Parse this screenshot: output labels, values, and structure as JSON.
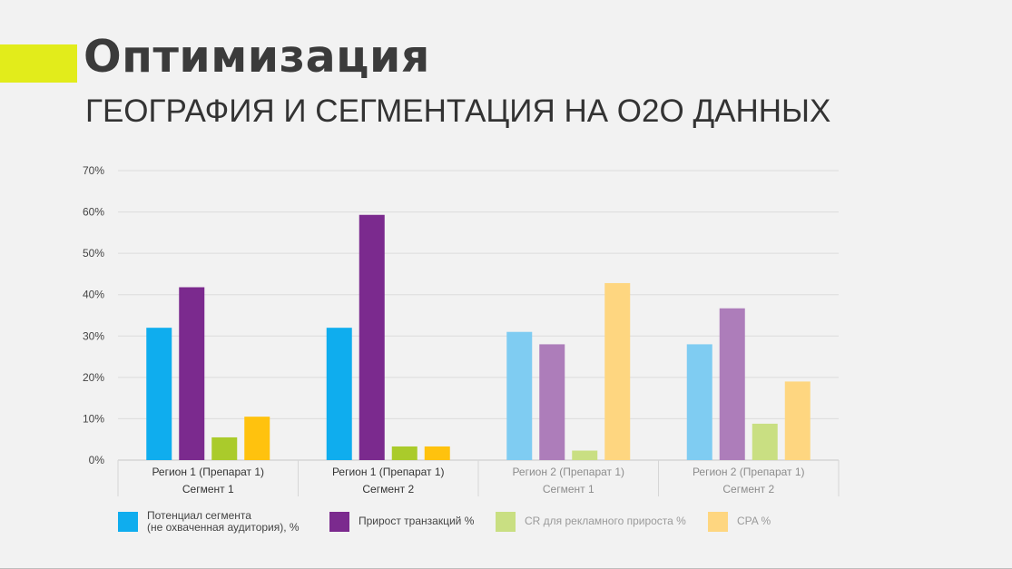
{
  "slide": {
    "title": "Оптимизация",
    "subtitle": "ГЕОГРАФИЯ И СЕГМЕНТАЦИЯ НА O2O ДАННЫХ"
  },
  "chart_data": {
    "type": "bar",
    "y_ticks": [
      "0%",
      "10%",
      "20%",
      "30%",
      "40%",
      "50%",
      "60%",
      "70%"
    ],
    "ylim": [
      0,
      70
    ],
    "y_unit": "%",
    "grid": true,
    "legend_position": "bottom",
    "categories": [
      {
        "line1": "Регион 1 (Препарат 1)",
        "line2": "Сегмент 1",
        "faded": false
      },
      {
        "line1": "Регион 1 (Препарат 1)",
        "line2": "Сегмент 2",
        "faded": false
      },
      {
        "line1": "Регион 2 (Препарат 1)",
        "line2": "Сегмент 1",
        "faded": true
      },
      {
        "line1": "Регион 2 (Препарат 1)",
        "line2": "Сегмент 2",
        "faded": true
      }
    ],
    "series": [
      {
        "name": "Потенциал сегмента\n(не охваченная аудитория), %",
        "values": [
          32,
          32,
          31,
          28
        ],
        "color": "#0fadee",
        "faded_color": "#7fccf2"
      },
      {
        "name": "Прирост транзакций %",
        "values": [
          41.8,
          59.3,
          28,
          36.7
        ],
        "color": "#7b2a8e",
        "faded_color": "#ad7dba"
      },
      {
        "name": "CR для рекламного прироста %",
        "values": [
          5.5,
          3.3,
          2.3,
          8.8
        ],
        "color": "#aacb2b",
        "faded_color": "#c9df82"
      },
      {
        "name": "CPA %",
        "values": [
          10.5,
          3.3,
          42.8,
          19
        ],
        "color": "#ffc20e",
        "faded_color": "#fed680"
      }
    ]
  },
  "legend": [
    {
      "label": "Потенциал сегмента\n(не охваченная аудитория), %",
      "color": "#0fadee",
      "faded": false
    },
    {
      "label": "Прирост транзакций %",
      "color": "#7b2a8e",
      "faded": false
    },
    {
      "label": "CR для рекламного прироста %",
      "color": "#c9df82",
      "faded": true
    },
    {
      "label": "CPA %",
      "color": "#fed680",
      "faded": true
    }
  ]
}
